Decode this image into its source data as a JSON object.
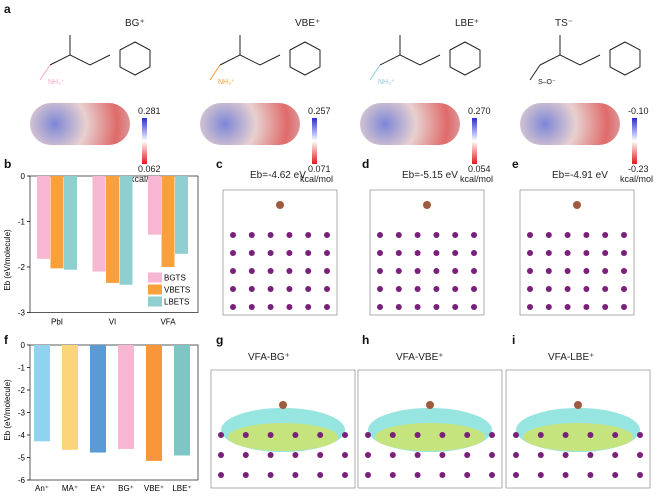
{
  "panels": {
    "a": "a",
    "b": "b",
    "c": "c",
    "d": "d",
    "e": "e",
    "f": "f",
    "g": "g",
    "h": "h",
    "i": "i"
  },
  "molecules": [
    {
      "name": "BG⁺",
      "fragment": "NH₃⁺",
      "color": "#f4a6c9",
      "cb_max": "0.281",
      "cb_min": "0.062",
      "unit": "kcal/mol"
    },
    {
      "name": "VBE⁺",
      "fragment": "NH₃⁺",
      "color": "#f39a2f",
      "cb_max": "0.257",
      "cb_min": "0.071",
      "unit": "kcal/mol"
    },
    {
      "name": "LBE⁺",
      "fragment": "NH₃⁺",
      "color": "#8cc8d8",
      "cb_max": "0.270",
      "cb_min": "0.054",
      "unit": "kcal/mol"
    },
    {
      "name": "TS⁻",
      "fragment": "S–O⁻",
      "color": "#222222",
      "cb_max": "-0.10",
      "cb_min": "-0.23",
      "unit": "kcal/mol"
    }
  ],
  "adsorption": {
    "c": "Eb=-4.62 eV",
    "d": "Eb=-5.15 eV",
    "e": "Eb=-4.91 eV"
  },
  "charge_density": {
    "g": "VFA-BG⁺",
    "h": "VFA-VBE⁺",
    "i": "VFA-LBE⁺"
  },
  "chart_data": [
    {
      "id": "b",
      "type": "bar",
      "categories": [
        "PbI",
        "VI",
        "VFA"
      ],
      "series": [
        {
          "name": "BGTS",
          "color": "#f7b6d2",
          "values": [
            -1.82,
            -2.1,
            -1.29
          ]
        },
        {
          "name": "VBETS",
          "color": "#f7a03c",
          "values": [
            -2.03,
            -2.35,
            -2.0
          ]
        },
        {
          "name": "LBETS",
          "color": "#8fcfcf",
          "values": [
            -2.06,
            -2.39,
            -1.71
          ]
        }
      ],
      "ylabel": "Eb (eV/molecule)",
      "ylim": [
        -3,
        0
      ],
      "yticks": [
        "0",
        "-1",
        "-2",
        "-3"
      ],
      "legend": "bottom-right"
    },
    {
      "id": "f",
      "type": "bar",
      "categories": [
        "An⁺",
        "MA⁺",
        "EA⁺",
        "BG⁺",
        "VBE⁺",
        "LBE⁺"
      ],
      "values": [
        -4.28,
        -4.66,
        -4.78,
        -4.62,
        -5.15,
        -4.91
      ],
      "colors": [
        "#8fd3ee",
        "#fbd57a",
        "#5b9bd5",
        "#f7b6d2",
        "#f7963a",
        "#7fc5c3"
      ],
      "ylabel": "Eb (eV/molecule)",
      "ylim": [
        -6,
        0
      ],
      "yticks": [
        "0",
        "-1",
        "-2",
        "-3",
        "-4",
        "-5",
        "-6"
      ]
    }
  ]
}
